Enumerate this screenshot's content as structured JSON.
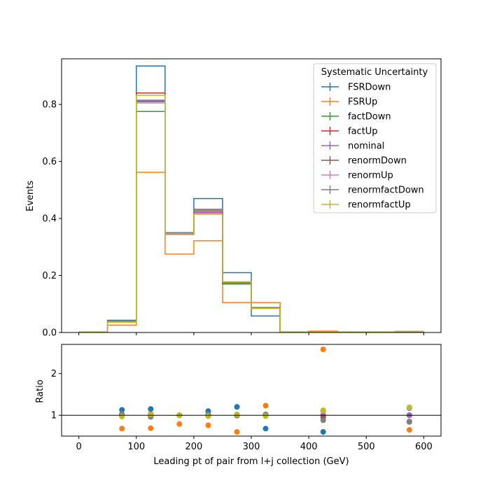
{
  "chart_data": {
    "type": "histogram-with-ratio",
    "bin_edges": [
      0,
      50,
      100,
      150,
      200,
      250,
      300,
      350,
      400,
      450,
      500,
      550,
      600
    ],
    "top_panel": {
      "ylabel": "Events",
      "ylim": [
        0,
        0.96
      ],
      "yticks": [
        "0.0",
        "0.2",
        "0.4",
        "0.6",
        "0.8"
      ]
    },
    "bottom_panel": {
      "ylabel": "Ratio",
      "ylim": [
        0.5,
        2.7
      ],
      "yticks": [
        "1",
        "2"
      ],
      "reference_line": 1
    },
    "xlabel": "Leading pt of pair from l+j collection (GeV)",
    "xlim": [
      -30,
      630
    ],
    "xticks": [
      "0",
      "100",
      "200",
      "300",
      "400",
      "500",
      "600"
    ],
    "legend": {
      "title": "Systematic Uncertainty",
      "placement": "top-right"
    },
    "series": [
      {
        "name": "FSRDown",
        "color": "#1f77b4",
        "values": [
          0.001,
          0.043,
          0.935,
          0.345,
          0.47,
          0.21,
          0.058,
          0.001,
          0.002,
          0.001,
          0.001,
          0.004
        ],
        "ratio": [
          null,
          1.13,
          1.15,
          1.0,
          1.1,
          1.2,
          0.68,
          null,
          0.6,
          null,
          null,
          1.17
        ]
      },
      {
        "name": "FSRUp",
        "color": "#ff7f0e",
        "values": [
          0.001,
          0.026,
          0.562,
          0.275,
          0.322,
          0.105,
          0.105,
          0.001,
          0.005,
          0.001,
          0.001,
          0.002
        ],
        "ratio": [
          null,
          0.68,
          0.69,
          0.79,
          0.76,
          0.6,
          1.23,
          null,
          2.58,
          null,
          null,
          0.65
        ]
      },
      {
        "name": "factDown",
        "color": "#2ca02c",
        "values": [
          0.001,
          0.038,
          0.775,
          0.35,
          0.42,
          0.17,
          0.086,
          0.001,
          0.002,
          0.001,
          0.001,
          0.004
        ],
        "ratio": [
          null,
          1.0,
          0.97,
          1.0,
          0.99,
          1.0,
          1.0,
          null,
          1.0,
          null,
          null,
          1.0
        ]
      },
      {
        "name": "factUp",
        "color": "#d62728",
        "values": [
          0.001,
          0.038,
          0.84,
          0.345,
          0.425,
          0.175,
          0.087,
          0.001,
          0.002,
          0.001,
          0.001,
          0.004
        ],
        "ratio": [
          null,
          1.0,
          1.03,
          1.0,
          1.0,
          1.0,
          1.0,
          null,
          1.0,
          null,
          null,
          1.0
        ]
      },
      {
        "name": "nominal",
        "color": "#9467bd",
        "values": [
          0.001,
          0.038,
          0.815,
          0.345,
          0.425,
          0.175,
          0.086,
          0.001,
          0.002,
          0.001,
          0.001,
          0.004
        ],
        "ratio": [
          null,
          1.0,
          1.0,
          1.0,
          1.0,
          1.0,
          1.0,
          null,
          1.0,
          null,
          null,
          1.0
        ]
      },
      {
        "name": "renormDown",
        "color": "#8c564b",
        "values": [
          0.001,
          0.038,
          0.81,
          0.35,
          0.43,
          0.175,
          0.087,
          0.001,
          0.002,
          0.001,
          0.001,
          0.004
        ],
        "ratio": [
          null,
          1.02,
          0.99,
          1.0,
          1.01,
          1.0,
          1.01,
          null,
          0.95,
          null,
          null,
          0.85
        ]
      },
      {
        "name": "renormUp",
        "color": "#e377c2",
        "values": [
          0.001,
          0.037,
          0.805,
          0.345,
          0.418,
          0.177,
          0.085,
          0.001,
          0.002,
          0.001,
          0.001,
          0.004
        ],
        "ratio": [
          null,
          0.99,
          0.99,
          1.0,
          0.98,
          1.01,
          0.99,
          null,
          1.1,
          null,
          null,
          1.18
        ]
      },
      {
        "name": "renormfactDown",
        "color": "#7f7f7f",
        "values": [
          0.001,
          0.039,
          0.812,
          0.35,
          0.432,
          0.173,
          0.088,
          0.001,
          0.002,
          0.001,
          0.001,
          0.004
        ],
        "ratio": [
          null,
          1.03,
          0.96,
          1.0,
          1.02,
          0.99,
          1.02,
          null,
          0.88,
          null,
          null,
          0.84
        ]
      },
      {
        "name": "renormfactUp",
        "color": "#bcbd22",
        "values": [
          0.001,
          0.036,
          0.832,
          0.343,
          0.415,
          0.178,
          0.084,
          0.001,
          0.002,
          0.001,
          0.001,
          0.004
        ],
        "ratio": [
          null,
          0.97,
          1.02,
          1.0,
          0.98,
          1.02,
          0.98,
          null,
          1.12,
          null,
          null,
          1.19
        ]
      }
    ]
  }
}
